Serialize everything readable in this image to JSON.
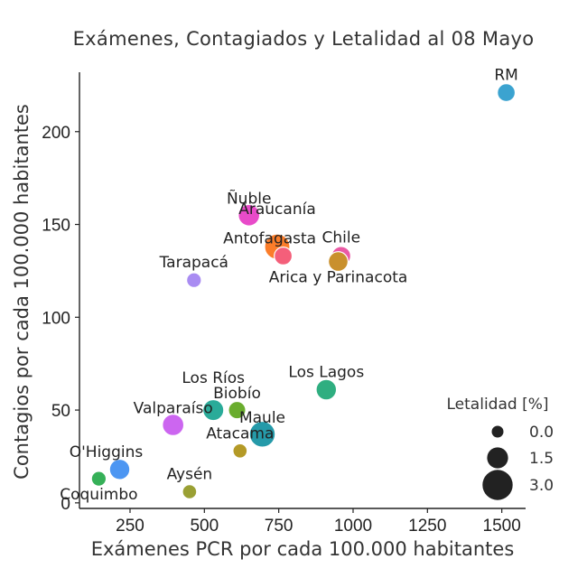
{
  "chart_data": {
    "type": "scatter",
    "title": "Exámenes, Contagiados y Letalidad al 08 Mayo",
    "xlabel": "Exámenes PCR por cada 100.000 habitantes",
    "ylabel": "Contagios por cada 100.000 habitantes",
    "xlim": [
      80,
      1580
    ],
    "ylim": [
      -3,
      232
    ],
    "xticks": [
      250,
      500,
      750,
      1000,
      1250,
      1500
    ],
    "yticks": [
      0,
      50,
      100,
      150,
      200
    ],
    "grid": false,
    "legend": {
      "title": "Letalidad [%]",
      "placement": "bottom-right",
      "entries": [
        {
          "label": "0.0",
          "size_value": 0.0
        },
        {
          "label": "1.5",
          "size_value": 1.5
        },
        {
          "label": "3.0",
          "size_value": 3.0
        }
      ]
    },
    "points": [
      {
        "name": "RM",
        "x": 1515,
        "y": 221,
        "letalidad": 1.0,
        "color": "#3ba3d0"
      },
      {
        "name": "Ñuble",
        "x": 650,
        "y": 155,
        "letalidad": 1.6,
        "color": "#e84bc9"
      },
      {
        "name": "Araucanía",
        "x": 745,
        "y": 138,
        "letalidad": 2.2,
        "color": "#fb7d2a"
      },
      {
        "name": "Antofagasta",
        "x": 765,
        "y": 133,
        "letalidad": 1.0,
        "color": "#f45f7a"
      },
      {
        "name": "Chile",
        "x": 960,
        "y": 133,
        "letalidad": 1.2,
        "color": "#ea5aa4"
      },
      {
        "name": "Arica y Parinacota",
        "x": 950,
        "y": 130,
        "letalidad": 1.3,
        "color": "#c9902d"
      },
      {
        "name": "Tarapacá",
        "x": 465,
        "y": 120,
        "letalidad": 0.5,
        "color": "#a98cf2"
      },
      {
        "name": "Los Lagos",
        "x": 910,
        "y": 61,
        "letalidad": 1.4,
        "color": "#2fae80"
      },
      {
        "name": "Los Ríos",
        "x": 530,
        "y": 50,
        "letalidad": 1.5,
        "color": "#2aab99"
      },
      {
        "name": "Biobío",
        "x": 610,
        "y": 50,
        "letalidad": 0.9,
        "color": "#6aad2e"
      },
      {
        "name": "Valparaíso",
        "x": 395,
        "y": 42,
        "letalidad": 1.6,
        "color": "#cc66f0"
      },
      {
        "name": "Maule",
        "x": 695,
        "y": 37,
        "letalidad": 2.3,
        "color": "#259aa9"
      },
      {
        "name": "Atacama",
        "x": 620,
        "y": 28,
        "letalidad": 0.4,
        "color": "#b49a27"
      },
      {
        "name": "O'Higgins",
        "x": 215,
        "y": 18,
        "letalidad": 1.4,
        "color": "#4c96f2"
      },
      {
        "name": "Coquimbo",
        "x": 145,
        "y": 13,
        "letalidad": 0.5,
        "color": "#36b058"
      },
      {
        "name": "Aysén",
        "x": 450,
        "y": 6,
        "letalidad": 0.4,
        "color": "#9aa034"
      }
    ]
  }
}
